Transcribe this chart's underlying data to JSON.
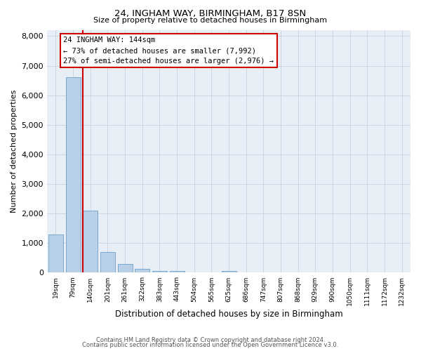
{
  "title_line1": "24, INGHAM WAY, BIRMINGHAM, B17 8SN",
  "title_line2": "Size of property relative to detached houses in Birmingham",
  "xlabel": "Distribution of detached houses by size in Birmingham",
  "ylabel": "Number of detached properties",
  "categories": [
    "19sqm",
    "79sqm",
    "140sqm",
    "201sqm",
    "261sqm",
    "322sqm",
    "383sqm",
    "443sqm",
    "504sqm",
    "565sqm",
    "625sqm",
    "686sqm",
    "747sqm",
    "807sqm",
    "868sqm",
    "929sqm",
    "990sqm",
    "1050sqm",
    "1111sqm",
    "1172sqm",
    "1232sqm"
  ],
  "values": [
    1300,
    6600,
    2100,
    700,
    290,
    120,
    70,
    60,
    0,
    0,
    70,
    0,
    0,
    0,
    0,
    0,
    0,
    0,
    0,
    0,
    0
  ],
  "bar_color": "#b8cfe8",
  "bar_edge_color": "#7aa8cc",
  "vline_color": "#cc0000",
  "annotation_box_edge_color": "#cc0000",
  "annotation_text": "24 INGHAM WAY: 144sqm\n← 73% of detached houses are smaller (7,992)\n27% of semi-detached houses are larger (2,976) →",
  "ylim_max": 8200,
  "yticks": [
    0,
    1000,
    2000,
    3000,
    4000,
    5000,
    6000,
    7000,
    8000
  ],
  "grid_color": "#ccd5e3",
  "background_color": "#e8eef5",
  "footer_line1": "Contains HM Land Registry data © Crown copyright and database right 2024.",
  "footer_line2": "Contains public sector information licensed under the Open Government Licence v3.0."
}
